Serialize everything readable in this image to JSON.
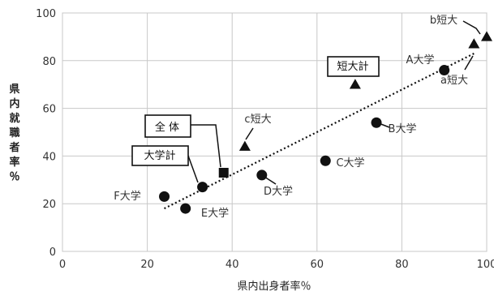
{
  "chart_data": {
    "type": "scatter",
    "xlabel": "県内出身者率％",
    "ylabel": "県内就職者率％",
    "xlim": [
      0,
      100
    ],
    "ylim": [
      0,
      100
    ],
    "xticks": [
      "0",
      "20",
      "40",
      "60",
      "80",
      "100"
    ],
    "yticks": [
      "0",
      "20",
      "40",
      "60",
      "80",
      "100"
    ],
    "grid": true,
    "points": [
      {
        "label": "A大学",
        "x": 90,
        "y": 76,
        "marker": "circle"
      },
      {
        "label": "B大学",
        "x": 74,
        "y": 54,
        "marker": "circle"
      },
      {
        "label": "C大学",
        "x": 62,
        "y": 38,
        "marker": "circle"
      },
      {
        "label": "D大学",
        "x": 47,
        "y": 32,
        "marker": "circle"
      },
      {
        "label": "E大学",
        "x": 29,
        "y": 18,
        "marker": "circle"
      },
      {
        "label": "F大学",
        "x": 24,
        "y": 23,
        "marker": "circle"
      },
      {
        "label": "大学計",
        "x": 33,
        "y": 27,
        "marker": "circle"
      },
      {
        "label": "a短大",
        "x": 97,
        "y": 87,
        "marker": "triangle"
      },
      {
        "label": "b短大",
        "x": 100,
        "y": 90,
        "marker": "triangle"
      },
      {
        "label": "c短大",
        "x": 43,
        "y": 44,
        "marker": "triangle"
      },
      {
        "label": "短大計",
        "x": 69,
        "y": 70,
        "marker": "triangle"
      },
      {
        "label": "全 体",
        "x": 38,
        "y": 33,
        "marker": "square"
      }
    ],
    "trendline": {
      "style": "dotted",
      "from": [
        24,
        18
      ],
      "to": [
        97,
        83
      ]
    }
  }
}
